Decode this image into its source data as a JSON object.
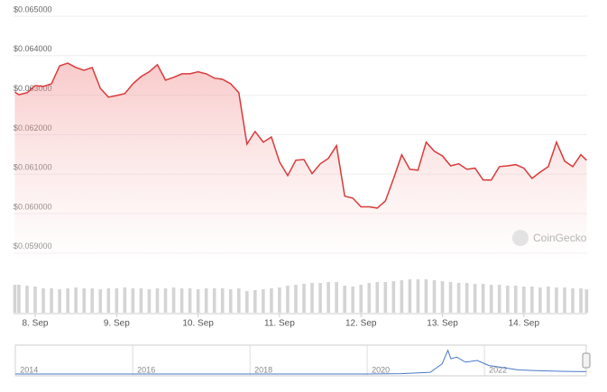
{
  "chart_data": {
    "type": "area",
    "x": [
      7.75,
      7.8,
      7.9,
      8.0,
      8.1,
      8.2,
      8.3,
      8.4,
      8.5,
      8.6,
      8.7,
      8.8,
      8.9,
      9.0,
      9.1,
      9.2,
      9.3,
      9.4,
      9.5,
      9.6,
      9.7,
      9.8,
      9.9,
      10.0,
      10.1,
      10.2,
      10.3,
      10.4,
      10.5,
      10.6,
      10.7,
      10.8,
      10.9,
      11.0,
      11.1,
      11.2,
      11.3,
      11.4,
      11.5,
      11.6,
      11.7,
      11.8,
      11.9,
      12.0,
      12.1,
      12.2,
      12.3,
      12.4,
      12.5,
      12.6,
      12.7,
      12.8,
      12.9,
      13.0,
      13.1,
      13.2,
      13.3,
      13.4,
      13.5,
      13.6,
      13.7,
      13.8,
      13.9,
      14.0,
      14.1,
      14.2,
      14.3,
      14.4,
      14.5,
      14.6,
      14.7,
      14.77
    ],
    "series": [
      {
        "color": "#d93a3a",
        "values": [
          0.06299,
          0.06292,
          0.06297,
          0.06315,
          0.06313,
          0.0632,
          0.06365,
          0.06372,
          0.06361,
          0.06354,
          0.06361,
          0.06308,
          0.06286,
          0.0629,
          0.06295,
          0.0632,
          0.06338,
          0.0635,
          0.06368,
          0.06329,
          0.06336,
          0.06345,
          0.06345,
          0.0635,
          0.06345,
          0.06334,
          0.06331,
          0.0632,
          0.06297,
          0.06167,
          0.06199,
          0.06172,
          0.06185,
          0.06122,
          0.06087,
          0.06126,
          0.06128,
          0.06092,
          0.06117,
          0.06131,
          0.06163,
          0.06035,
          0.0603,
          0.06008,
          0.06008,
          0.06005,
          0.06023,
          0.0608,
          0.0614,
          0.06103,
          0.06101,
          0.06172,
          0.06149,
          0.06137,
          0.06112,
          0.06117,
          0.06103,
          0.06106,
          0.06076,
          0.06076,
          0.0611,
          0.06112,
          0.06115,
          0.06106,
          0.0608,
          0.06096,
          0.0611,
          0.06172,
          0.06124,
          0.0611,
          0.0614,
          0.06126
        ]
      },
      {
        "color": "#d4d4d4",
        "axis": "y2",
        "values": [
          31,
          31,
          30,
          29,
          27,
          27,
          26,
          27,
          28,
          27,
          27,
          26,
          27,
          27,
          28,
          27,
          27,
          26,
          27,
          27,
          28,
          27,
          27,
          26,
          27,
          27,
          27,
          26,
          27,
          24,
          25,
          26,
          27,
          28,
          30,
          31,
          32,
          33,
          33,
          34,
          34,
          30,
          29,
          31,
          33,
          34,
          34,
          35,
          36,
          37,
          37,
          37,
          36,
          35,
          34,
          33,
          33,
          32,
          32,
          31,
          31,
          30,
          30,
          29,
          29,
          28,
          29,
          28,
          28,
          27,
          27,
          26
        ]
      }
    ],
    "xlim": [
      7.734,
      14.777
    ],
    "xticks": [
      {
        "value": 8,
        "label": "8. Sep"
      },
      {
        "value": 9,
        "label": "9. Sep"
      },
      {
        "value": 10,
        "label": "10. Sep"
      },
      {
        "value": 11,
        "label": "11. Sep"
      },
      {
        "value": 12,
        "label": "12. Sep"
      },
      {
        "value": 13,
        "label": "13. Sep"
      },
      {
        "value": 14,
        "label": "14. Sep"
      }
    ],
    "ylim": [
      0.0587,
      0.0652
    ],
    "yticks": [
      {
        "value": 0.059,
        "label": "$0.059000"
      },
      {
        "value": 0.06,
        "label": "$0.060000"
      },
      {
        "value": 0.061,
        "label": "$0.061000"
      },
      {
        "value": 0.062,
        "label": "$0.062000"
      },
      {
        "value": 0.063,
        "label": "$0.063000"
      },
      {
        "value": 0.064,
        "label": "$0.064000"
      },
      {
        "value": 0.065,
        "label": "$0.065000"
      }
    ],
    "y2lim": [
      0,
      40
    ],
    "grid": true,
    "watermark": "CoinGecko",
    "navigator": {
      "color": "#4a78c8",
      "xlim": [
        2013.92,
        2023.66
      ],
      "ylim": [
        0,
        0.8
      ],
      "xticks": [
        2014,
        2016,
        2018,
        2020,
        2022
      ],
      "x": [
        2013.92,
        2019.9,
        2020.5,
        2021.0,
        2021.2,
        2021.3,
        2021.35,
        2021.45,
        2021.6,
        2021.8,
        2022.0,
        2022.2,
        2022.5,
        2022.8,
        2023.2,
        2023.66
      ],
      "values": [
        0,
        0,
        0.01,
        0.05,
        0.3,
        0.7,
        0.45,
        0.5,
        0.35,
        0.4,
        0.25,
        0.2,
        0.12,
        0.1,
        0.08,
        0.07
      ]
    }
  }
}
